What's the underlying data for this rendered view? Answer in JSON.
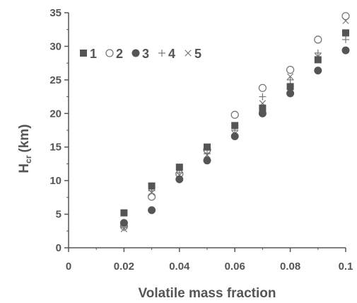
{
  "chart_data": {
    "type": "scatter",
    "title": "",
    "xlabel": "Volatile mass fraction",
    "ylabel_main": "H",
    "ylabel_sub": "cr",
    "ylabel_unit": "(km)",
    "xlim": [
      0,
      0.1
    ],
    "ylim": [
      0,
      35
    ],
    "grid": false,
    "legend_position": "top-left",
    "x_ticks": [
      "0",
      "0.02",
      "0.04",
      "0.06",
      "0.08",
      "0.1"
    ],
    "y_ticks": [
      "0",
      "5",
      "10",
      "15",
      "20",
      "25",
      "30",
      "35"
    ],
    "x": [
      0.02,
      0.03,
      0.04,
      0.05,
      0.06,
      0.07,
      0.08,
      0.09,
      0.1
    ],
    "series": [
      {
        "name": "1",
        "marker": "square",
        "values": [
          5.2,
          9.2,
          12.0,
          15.0,
          18.2,
          20.8,
          24.0,
          28.0,
          32.0
        ]
      },
      {
        "name": "2",
        "marker": "circle-open",
        "values": [
          3.2,
          7.6,
          11.0,
          14.6,
          19.8,
          23.8,
          26.5,
          31.0,
          34.5
        ]
      },
      {
        "name": "3",
        "marker": "circle-filled",
        "values": [
          3.7,
          5.6,
          10.2,
          13.0,
          16.6,
          20.0,
          23.0,
          26.4,
          29.4
        ]
      },
      {
        "name": "4",
        "marker": "plus",
        "values": [
          3.0,
          8.5,
          11.2,
          14.0,
          17.5,
          22.5,
          25.0,
          29.0,
          31.0
        ]
      },
      {
        "name": "5",
        "marker": "cross",
        "values": [
          2.8,
          8.2,
          10.8,
          13.8,
          17.0,
          21.5,
          25.5,
          28.5,
          33.8
        ]
      }
    ],
    "colors": {
      "axis": "#555555",
      "square": "#555555",
      "circle-filled": "#555555",
      "circle-open": "#777777",
      "plus": "#777777",
      "cross": "#777777"
    }
  }
}
